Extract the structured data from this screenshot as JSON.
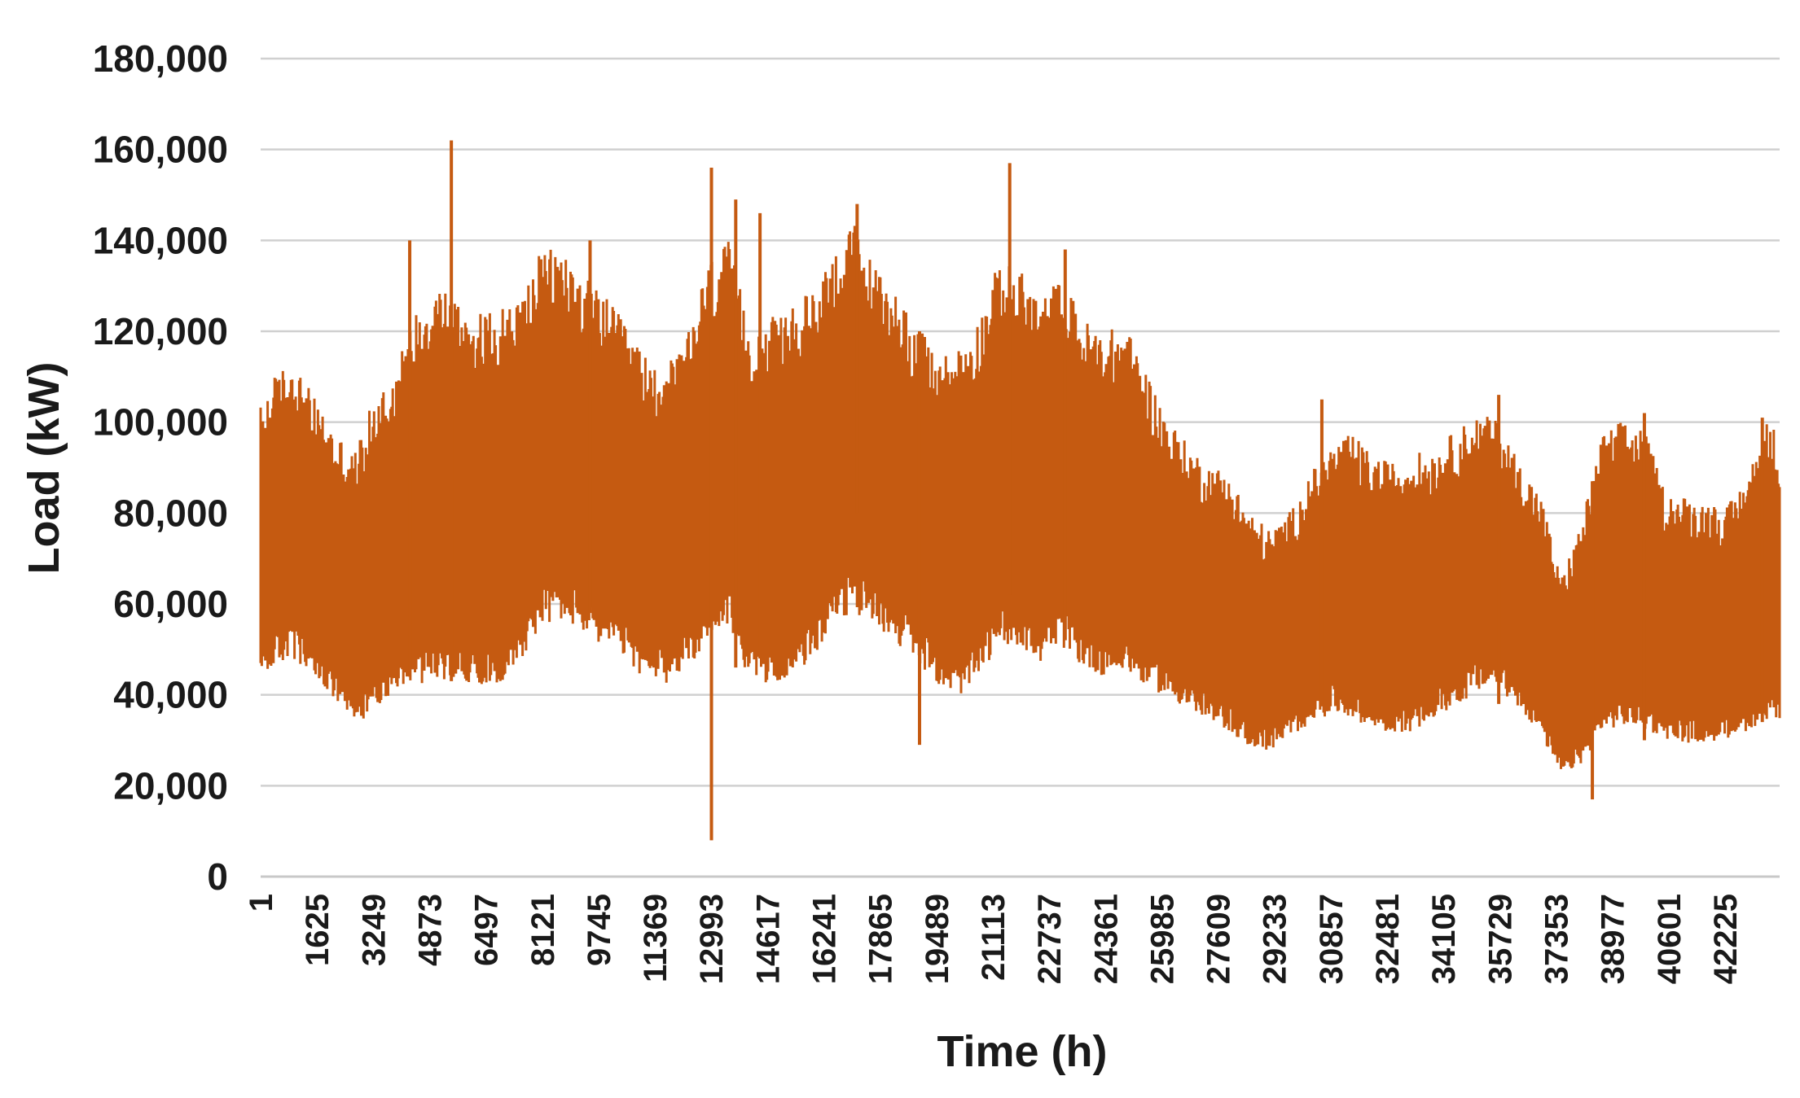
{
  "chart_data": {
    "type": "area",
    "title": "",
    "xlabel": "Time (h)",
    "ylabel": "Load (kW)",
    "ylim": [
      0,
      180000
    ],
    "xlim": [
      1,
      43800
    ],
    "grid": "horizontal",
    "legend": "none",
    "y_ticks": [
      {
        "value": 0,
        "label": "0"
      },
      {
        "value": 20000,
        "label": "20,000"
      },
      {
        "value": 40000,
        "label": "40,000"
      },
      {
        "value": 60000,
        "label": "60,000"
      },
      {
        "value": 80000,
        "label": "80,000"
      },
      {
        "value": 100000,
        "label": "100,000"
      },
      {
        "value": 120000,
        "label": "120,000"
      },
      {
        "value": 140000,
        "label": "140,000"
      },
      {
        "value": 160000,
        "label": "160,000"
      },
      {
        "value": 180000,
        "label": "180,000"
      }
    ],
    "x_ticks": [
      "1",
      "1625",
      "3249",
      "4873",
      "6497",
      "8121",
      "9745",
      "11369",
      "12993",
      "14617",
      "16241",
      "17865",
      "19489",
      "21113",
      "22737",
      "24361",
      "25985",
      "27609",
      "29233",
      "30857",
      "32481",
      "34105",
      "35729",
      "37353",
      "38977",
      "40601",
      "42225"
    ],
    "series": [
      {
        "color": "#c55a11",
        "envelope": {
          "x": [
            1,
            400,
            900,
            1500,
            2100,
            2700,
            3300,
            3900,
            4500,
            5100,
            5700,
            6300,
            6900,
            7500,
            8100,
            8700,
            9300,
            9900,
            10500,
            11100,
            11700,
            12300,
            12900,
            13500,
            14100,
            14700,
            15300,
            15900,
            16500,
            17100,
            17700,
            18300,
            18900,
            19500,
            20100,
            20700,
            21300,
            21900,
            22500,
            23100,
            23700,
            24300,
            24900,
            25500,
            26100,
            26700,
            27300,
            27900,
            28500,
            29100,
            29700,
            30300,
            30900,
            31500,
            32100,
            32700,
            33300,
            33900,
            34500,
            35100,
            35700,
            36300,
            36900,
            37500,
            38100,
            38700,
            39300,
            39900,
            40500,
            41100,
            41700,
            42300,
            42900,
            43500,
            43800
          ],
          "high": [
            98000,
            104000,
            108000,
            100000,
            93000,
            88000,
            100000,
            106000,
            118000,
            124000,
            120000,
            117000,
            118000,
            121000,
            130000,
            131000,
            125000,
            121000,
            115000,
            108000,
            106000,
            112000,
            128000,
            132000,
            114000,
            116000,
            118000,
            122000,
            130000,
            136000,
            127000,
            122000,
            115000,
            108000,
            110000,
            116000,
            128000,
            126000,
            120000,
            125000,
            116000,
            113000,
            115000,
            106000,
            96000,
            90000,
            86000,
            84000,
            76000,
            72000,
            76000,
            84000,
            90000,
            92000,
            87000,
            86000,
            88000,
            89000,
            93000,
            96000,
            95000,
            86000,
            80000,
            62000,
            74000,
            92000,
            95000,
            93000,
            80000,
            79000,
            78000,
            77000,
            84000,
            96000,
            90000
          ],
          "low": [
            47000,
            50000,
            52000,
            47000,
            42000,
            36000,
            40000,
            45000,
            46000,
            47000,
            47000,
            46000,
            46000,
            52000,
            60000,
            61000,
            58000,
            55000,
            52000,
            47000,
            46000,
            50000,
            56000,
            60000,
            47000,
            46000,
            48000,
            52000,
            60000,
            63000,
            60000,
            56000,
            52000,
            46000,
            43000,
            47000,
            56000,
            55000,
            51000,
            55000,
            50000,
            48000,
            49000,
            46000,
            43000,
            40000,
            37000,
            35000,
            31000,
            30000,
            33000,
            37000,
            39000,
            38000,
            35000,
            34000,
            35000,
            38000,
            41000,
            44000,
            45000,
            40000,
            34000,
            24000,
            27000,
            35000,
            36000,
            35000,
            33000,
            32000,
            32000,
            33000,
            35000,
            38000,
            37000
          ]
        },
        "spikes": [
          {
            "x": 4300,
            "high": 140000,
            "low": 44000
          },
          {
            "x": 5500,
            "high": 162000,
            "low": 43000
          },
          {
            "x": 9500,
            "high": 140000,
            "low": 58000
          },
          {
            "x": 13000,
            "high": 156000,
            "low": 8000
          },
          {
            "x": 13700,
            "high": 149000,
            "low": 46000
          },
          {
            "x": 14400,
            "high": 146000,
            "low": 48000
          },
          {
            "x": 17200,
            "high": 148000,
            "low": 80000
          },
          {
            "x": 19000,
            "high": 120000,
            "low": 29000
          },
          {
            "x": 21600,
            "high": 157000,
            "low": 62000
          },
          {
            "x": 23200,
            "high": 138000,
            "low": 52000
          },
          {
            "x": 30600,
            "high": 105000,
            "low": 38000
          },
          {
            "x": 35700,
            "high": 106000,
            "low": 38000
          },
          {
            "x": 38400,
            "high": 87000,
            "low": 17000
          },
          {
            "x": 39900,
            "high": 102000,
            "low": 30000
          },
          {
            "x": 43300,
            "high": 101000,
            "low": 34000
          }
        ]
      }
    ]
  }
}
